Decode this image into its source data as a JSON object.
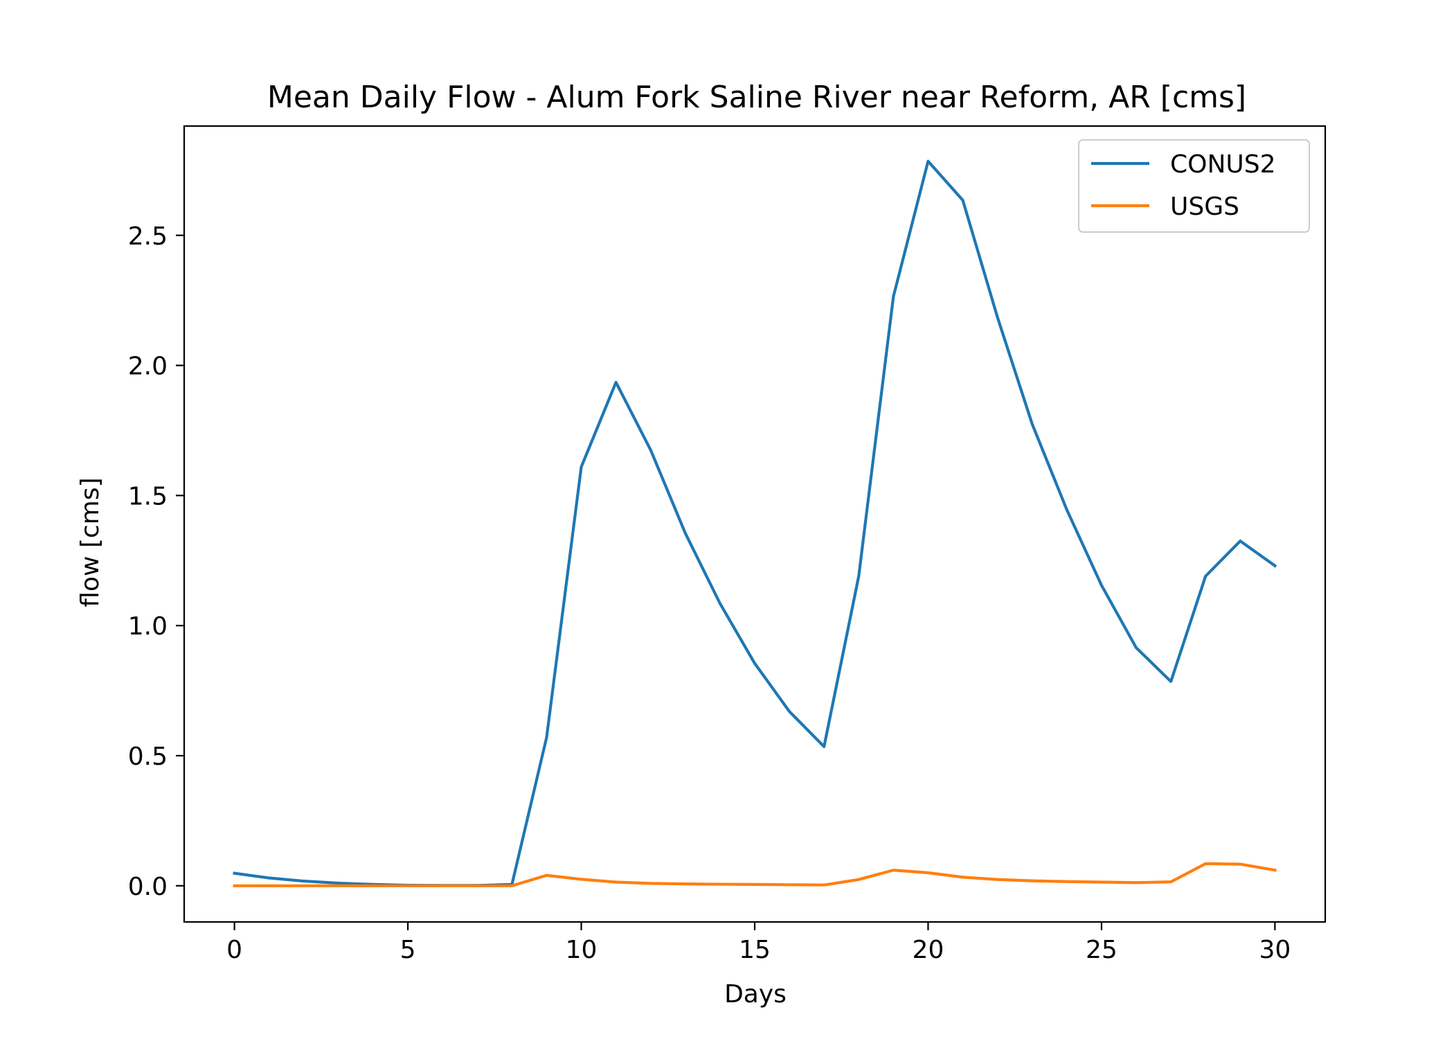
{
  "chart_data": {
    "type": "line",
    "title": "Mean Daily Flow - Alum Fork Saline River near Reform, AR [cms]",
    "xlabel": "Days",
    "ylabel": "flow [cms]",
    "xlim": [
      -1.45,
      31.45
    ],
    "ylim": [
      -0.139,
      2.92
    ],
    "xticks": [
      0,
      5,
      10,
      15,
      20,
      25,
      30
    ],
    "xtick_labels": [
      "0",
      "5",
      "10",
      "15",
      "20",
      "25",
      "30"
    ],
    "yticks": [
      0.0,
      0.5,
      1.0,
      1.5,
      2.0,
      2.5
    ],
    "ytick_labels": [
      "0.0",
      "0.5",
      "1.0",
      "1.5",
      "2.0",
      "2.5"
    ],
    "grid": false,
    "legend_position": "top-right",
    "x": [
      0,
      1,
      2,
      3,
      4,
      5,
      6,
      7,
      8,
      9,
      10,
      11,
      12,
      13,
      14,
      15,
      16,
      17,
      18,
      19,
      20,
      21,
      22,
      23,
      24,
      25,
      26,
      27,
      28,
      29,
      30
    ],
    "series": [
      {
        "name": "CONUS2",
        "color": "#1f77b4",
        "values": [
          0.048,
          0.03,
          0.018,
          0.01,
          0.005,
          0.002,
          0.001,
          0.001,
          0.005,
          0.57,
          1.61,
          1.935,
          1.675,
          1.355,
          1.085,
          0.855,
          0.67,
          0.535,
          1.19,
          2.265,
          2.785,
          2.635,
          2.185,
          1.775,
          1.445,
          1.155,
          0.915,
          0.785,
          1.19,
          1.325,
          1.23
        ]
      },
      {
        "name": "USGS",
        "color": "#ff7f0e",
        "values": [
          0.0,
          0.0,
          0.0,
          0.0,
          0.0,
          0.0,
          0.0,
          0.0,
          0.0,
          0.04,
          0.025,
          0.014,
          0.009,
          0.007,
          0.006,
          0.005,
          0.004,
          0.003,
          0.024,
          0.06,
          0.05,
          0.033,
          0.024,
          0.019,
          0.016,
          0.014,
          0.012,
          0.015,
          0.085,
          0.083,
          0.06
        ]
      }
    ]
  }
}
